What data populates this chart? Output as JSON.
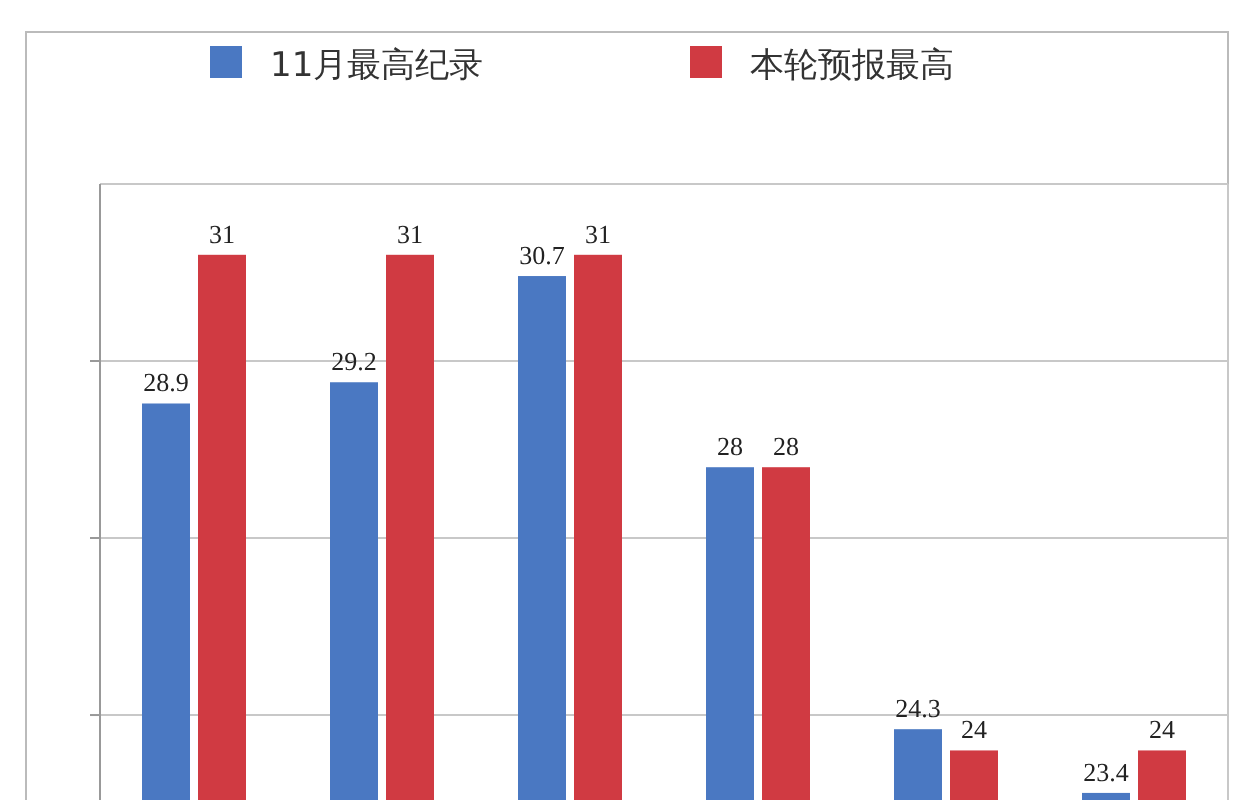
{
  "chart_data": {
    "type": "bar",
    "categories": [
      null,
      null,
      null,
      null,
      null,
      null
    ],
    "series": [
      {
        "name": "11月最高纪录",
        "color": "#4a78c2",
        "values": [
          28.9,
          29.2,
          30.7,
          28,
          24.3,
          23.4
        ]
      },
      {
        "name": "本轮预报最高",
        "color": "#d03a42",
        "values": [
          31,
          31,
          31,
          28,
          24,
          24
        ]
      }
    ],
    "data_labels": true,
    "legend": "top",
    "grid": "y",
    "ylim": [
      23.3,
      32
    ],
    "yticks": [
      {
        "value": 24.5,
        "label": null
      },
      {
        "value": 27,
        "label": null
      },
      {
        "value": 29.5,
        "label": null
      }
    ]
  }
}
